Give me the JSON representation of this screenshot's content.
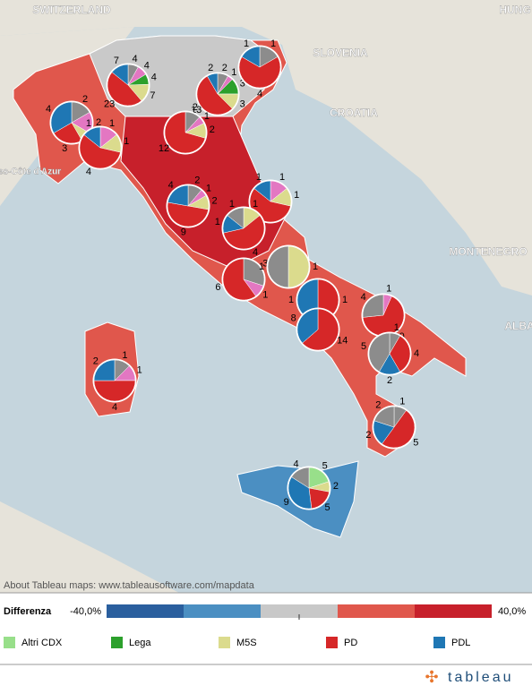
{
  "map": {
    "countries": [
      "SWITZERLAND",
      "HUNG",
      "SLOVENIA",
      "CROATIA",
      "BOSNIA AND HERZEGOVINA",
      "MONTENEGRO",
      "ALBA",
      "Alpes-Côte d'Azur"
    ],
    "credit": "About Tableau maps: www.tableausoftware.com/mapdata"
  },
  "pies": [
    {
      "slices": [
        {
          "value": 2,
          "color": "#8c8c8c"
        },
        {
          "value": 2,
          "color": "#e377c2"
        },
        {
          "value": 1,
          "color": "#dbdb8d"
        },
        {
          "value": 3,
          "color": "#d62728"
        },
        {
          "value": 4,
          "color": "#1f77b4"
        }
      ]
    },
    {
      "slices": [
        {
          "value": 1,
          "color": "#e377c2"
        },
        {
          "value": 1,
          "color": "#dbdb8d"
        },
        {
          "value": 4,
          "color": "#d62728"
        },
        {
          "value": 1,
          "color": "#1f77b4"
        }
      ]
    },
    {
      "slices": [
        {
          "value": 4,
          "color": "#8c8c8c"
        },
        {
          "value": 4,
          "color": "#e377c2"
        },
        {
          "value": 4,
          "color": "#2ca02c"
        },
        {
          "value": 7,
          "color": "#dbdb8d"
        },
        {
          "value": 23,
          "color": "#d62728"
        },
        {
          "value": 7,
          "color": "#1f77b4"
        }
      ]
    },
    {
      "slices": [
        {
          "value": 2,
          "color": "#8c8c8c"
        },
        {
          "value": 1,
          "color": "#e377c2"
        },
        {
          "value": 3,
          "color": "#2ca02c"
        },
        {
          "value": 3,
          "color": "#dbdb8d"
        },
        {
          "value": 13,
          "color": "#d62728"
        },
        {
          "value": 2,
          "color": "#1f77b4"
        }
      ]
    },
    {
      "slices": [
        {
          "value": 1,
          "color": "#8c8c8c"
        },
        {
          "value": 4,
          "color": "#d62728"
        },
        {
          "value": 1,
          "color": "#1f77b4"
        }
      ]
    },
    {
      "slices": [
        {
          "value": 2,
          "color": "#8c8c8c"
        },
        {
          "value": 1,
          "color": "#e377c2"
        },
        {
          "value": 2,
          "color": "#dbdb8d"
        },
        {
          "value": 12,
          "color": "#d62728"
        }
      ]
    },
    {
      "slices": [
        {
          "value": 2,
          "color": "#8c8c8c"
        },
        {
          "value": 1,
          "color": "#e377c2"
        },
        {
          "value": 2,
          "color": "#dbdb8d"
        },
        {
          "value": 9,
          "color": "#d62728"
        },
        {
          "value": 4,
          "color": "#1f77b4"
        }
      ]
    },
    {
      "slices": [
        {
          "value": 1,
          "color": "#e377c2"
        },
        {
          "value": 1,
          "color": "#dbdb8d"
        },
        {
          "value": 4,
          "color": "#d62728"
        },
        {
          "value": 1,
          "color": "#1f77b4"
        }
      ]
    },
    {
      "slices": [
        {
          "value": 1,
          "color": "#dbdb8d"
        },
        {
          "value": 4,
          "color": "#d62728"
        },
        {
          "value": 1,
          "color": "#1f77b4"
        },
        {
          "value": 1,
          "color": "#8c8c8c"
        }
      ]
    },
    {
      "slices": [
        {
          "value": 3,
          "color": "#8c8c8c"
        },
        {
          "value": 1,
          "color": "#e377c2"
        },
        {
          "value": 6,
          "color": "#d62728"
        }
      ]
    },
    {
      "slices": [
        {
          "value": 1,
          "color": "#dbdb8d"
        },
        {
          "value": 1,
          "color": "#8c8c8c"
        }
      ]
    },
    {
      "slices": [
        {
          "value": 1,
          "color": "#d62728"
        },
        {
          "value": 1,
          "color": "#1f77b4"
        }
      ]
    },
    {
      "slices": [
        {
          "value": 14,
          "color": "#d62728"
        },
        {
          "value": 8,
          "color": "#1f77b4"
        }
      ]
    },
    {
      "slices": [
        {
          "value": 1,
          "color": "#e377c2"
        },
        {
          "value": 10,
          "color": "#d62728"
        },
        {
          "value": 4,
          "color": "#8c8c8c"
        }
      ]
    },
    {
      "slices": [
        {
          "value": 1,
          "color": "#8c8c8c"
        },
        {
          "value": 4,
          "color": "#d62728"
        },
        {
          "value": 2,
          "color": "#1f77b4"
        },
        {
          "value": 5,
          "color": "#8c8c8c"
        }
      ]
    },
    {
      "slices": [
        {
          "value": 1,
          "color": "#8c8c8c"
        },
        {
          "value": 1,
          "color": "#e377c2"
        },
        {
          "value": 4,
          "color": "#d62728"
        },
        {
          "value": 2,
          "color": "#1f77b4"
        }
      ]
    },
    {
      "slices": [
        {
          "value": 1,
          "color": "#8c8c8c"
        },
        {
          "value": 5,
          "color": "#d62728"
        },
        {
          "value": 2,
          "color": "#1f77b4"
        },
        {
          "value": 2,
          "color": "#8c8c8c"
        }
      ]
    },
    {
      "slices": [
        {
          "value": 5,
          "color": "#98df8a"
        },
        {
          "value": 2,
          "color": "#dbdb8d"
        },
        {
          "value": 5,
          "color": "#d62728"
        },
        {
          "value": 9,
          "color": "#1f77b4"
        },
        {
          "value": 4,
          "color": "#8c8c8c"
        }
      ]
    }
  ],
  "legend": {
    "title": "Differenza",
    "min": "-40,0%",
    "max": "40,0%",
    "scale_colors": [
      "#2a5f9e",
      "#4b8fc2",
      "#c8c8c8",
      "#e0574c",
      "#c7202b"
    ],
    "parties": [
      {
        "name": "Altri CDX",
        "color": "#98df8a"
      },
      {
        "name": "Lega",
        "color": "#2ca02c"
      },
      {
        "name": "M5S",
        "color": "#dbdb8d"
      },
      {
        "name": "PD",
        "color": "#d62728"
      },
      {
        "name": "PDL",
        "color": "#1f77b4"
      }
    ]
  },
  "footer": {
    "logo": "tableau"
  }
}
